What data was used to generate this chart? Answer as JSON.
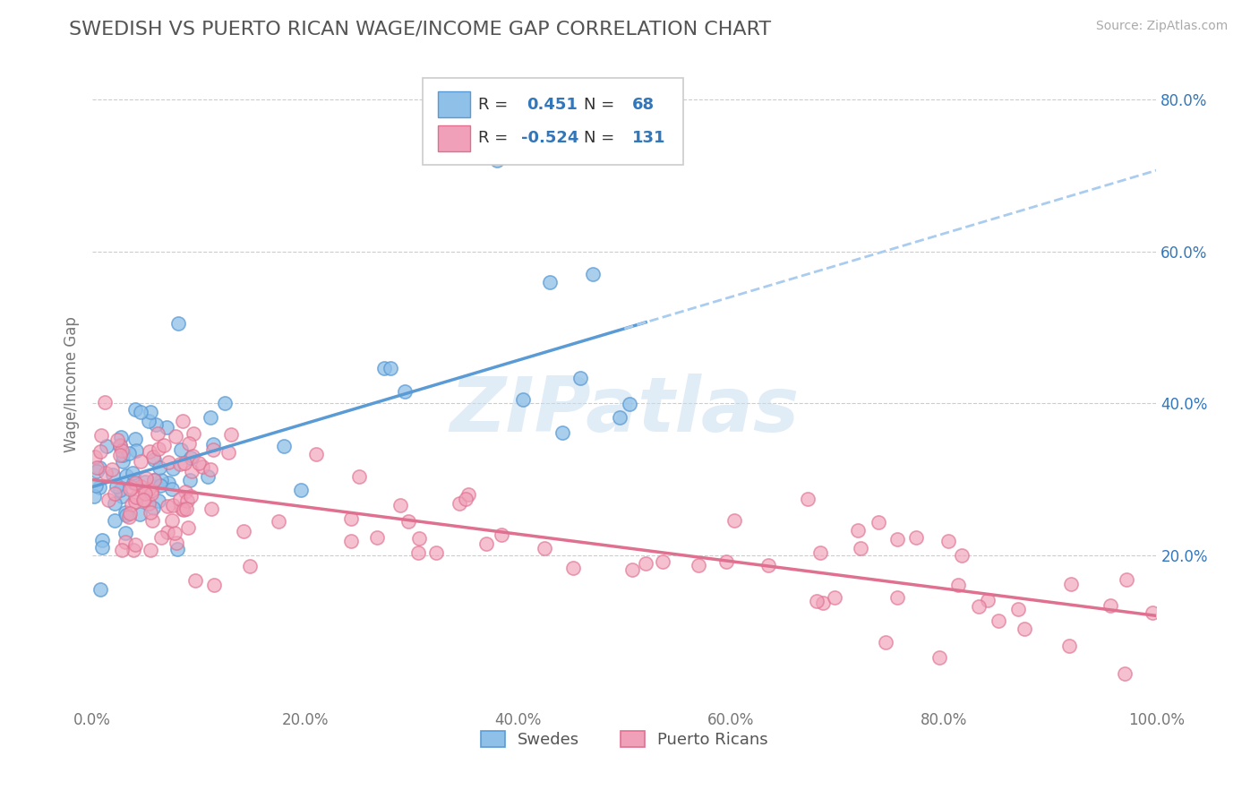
{
  "title": "SWEDISH VS PUERTO RICAN WAGE/INCOME GAP CORRELATION CHART",
  "source": "Source: ZipAtlas.com",
  "ylabel": "Wage/Income Gap",
  "watermark": "ZIPatlas",
  "blue_color": "#5b9bd5",
  "pink_color": "#e07090",
  "blue_scatter": "#8ec0e8",
  "pink_scatter": "#f0a0b8",
  "title_color": "#555555",
  "r_value_color": "#3377bb",
  "background_color": "#ffffff",
  "grid_color": "#cccccc",
  "ylim": [
    0.0,
    0.85
  ],
  "xlim": [
    0.0,
    1.0
  ],
  "yticks": [
    0.2,
    0.4,
    0.6,
    0.8
  ],
  "ytick_labels": [
    "20.0%",
    "40.0%",
    "60.0%",
    "80.0%"
  ],
  "xtick_labels": [
    "0.0%",
    "20.0%",
    "40.0%",
    "60.0%",
    "80.0%",
    "100.0%"
  ],
  "xticks": [
    0.0,
    0.2,
    0.4,
    0.6,
    0.8,
    1.0
  ]
}
